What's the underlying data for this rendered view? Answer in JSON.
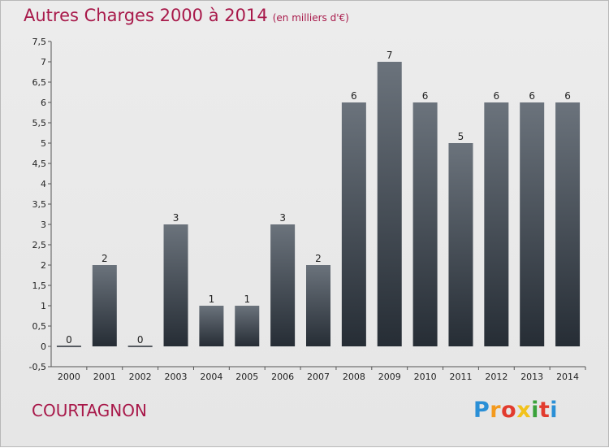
{
  "header": {
    "title": "Autres Charges 2000 à 2014",
    "unit": "(en milliers d'€)"
  },
  "footer": {
    "commune": "COURTAGNON",
    "logo": "Proxiti"
  },
  "colors": {
    "title": "#a8194a",
    "bar_top": "#6b737c",
    "bar_bottom": "#262d35",
    "axis": "#555555"
  },
  "chart_data": {
    "type": "bar",
    "title": "Autres Charges 2000 à 2014",
    "subtitle": "(en milliers d'€)",
    "xlabel": "",
    "ylabel": "",
    "categories": [
      "2000",
      "2001",
      "2002",
      "2003",
      "2004",
      "2005",
      "2006",
      "2007",
      "2008",
      "2009",
      "2010",
      "2011",
      "2012",
      "2013",
      "2014"
    ],
    "values": [
      0,
      2,
      0,
      3,
      1,
      1,
      3,
      2,
      6,
      7,
      6,
      5,
      6,
      6,
      6
    ],
    "data_labels": [
      "0",
      "2",
      "0",
      "3",
      "1",
      "1",
      "3",
      "2",
      "6",
      "7",
      "6",
      "5",
      "6",
      "6",
      "6"
    ],
    "ylim": [
      -0.5,
      7.5
    ],
    "yticks": [
      -0.5,
      0,
      0.5,
      1,
      1.5,
      2,
      2.5,
      3,
      3.5,
      4,
      4.5,
      5,
      5.5,
      6,
      6.5,
      7,
      7.5
    ],
    "ytick_labels": [
      "-0,5",
      "0",
      "0,5",
      "1",
      "1,5",
      "2",
      "2,5",
      "3",
      "3,5",
      "4",
      "4,5",
      "5",
      "5,5",
      "6",
      "6,5",
      "7",
      "7,5"
    ],
    "grid": false,
    "legend": "none"
  }
}
